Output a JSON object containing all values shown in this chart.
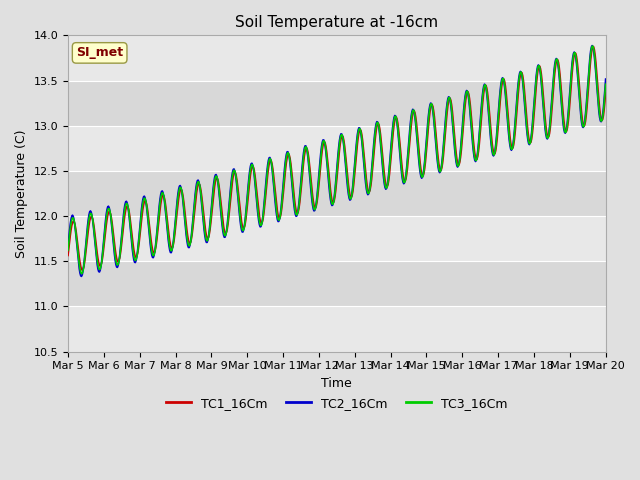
{
  "title": "Soil Temperature at -16cm",
  "ylabel": "Soil Temperature (C)",
  "xlabel": "Time",
  "ylim": [
    10.5,
    14.0
  ],
  "yticks": [
    10.5,
    11.0,
    11.5,
    12.0,
    12.5,
    13.0,
    13.5,
    14.0
  ],
  "xtick_labels": [
    "Mar 5",
    "Mar 6",
    "Mar 7",
    "Mar 8",
    "Mar 9",
    "Mar 10",
    "Mar 11",
    "Mar 12",
    "Mar 13",
    "Mar 14",
    "Mar 15",
    "Mar 16",
    "Mar 17",
    "Mar 18",
    "Mar 19",
    "Mar 20"
  ],
  "series_colors": [
    "#cc0000",
    "#0000cc",
    "#00cc00"
  ],
  "series_labels": [
    "TC1_16Cm",
    "TC2_16Cm",
    "TC3_16Cm"
  ],
  "legend_box_color": "#ffffcc",
  "legend_box_edge": "#999944",
  "annotation_text": "SI_met",
  "annotation_color": "#800000",
  "bg_color": "#e0e0e0",
  "plot_bg_color": "#e8e8e8",
  "band_color_light": "#e8e8e8",
  "band_color_dark": "#d8d8d8",
  "grid_color": "#ffffff",
  "linewidth": 1.2,
  "title_fontsize": 11,
  "tick_fontsize": 8,
  "ylabel_fontsize": 9
}
